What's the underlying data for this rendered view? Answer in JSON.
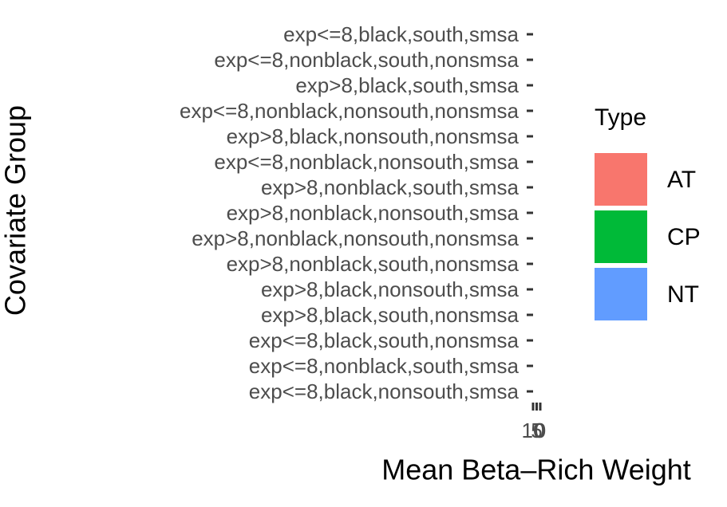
{
  "chart_data": {
    "type": "bar",
    "orientation": "horizontal",
    "xlabel": "Mean Beta–Rich Weight",
    "ylabel": "Covariate Group",
    "categories": [
      "exp<=8,black,south,smsa",
      "exp<=8,nonblack,south,nonsmsa",
      "exp>8,black,south,smsa",
      "exp<=8,nonblack,nonsouth,nonsmsa",
      "exp>8,black,nonsouth,nonsmsa",
      "exp<=8,nonblack,nonsouth,smsa",
      "exp>8,nonblack,south,smsa",
      "exp>8,nonblack,nonsouth,smsa",
      "exp>8,nonblack,nonsouth,nonsmsa",
      "exp>8,nonblack,south,nonsmsa",
      "exp>8,black,nonsouth,smsa",
      "exp>8,black,south,nonsmsa",
      "exp<=8,black,south,nonsmsa",
      "exp<=8,nonblack,south,smsa",
      "exp<=8,black,nonsouth,smsa"
    ],
    "xlim": [
      0,
      10
    ],
    "xticks": [
      0,
      5,
      10
    ],
    "legend": {
      "title": "Type",
      "items": [
        {
          "name": "AT",
          "color": "#f8766d"
        },
        {
          "name": "CP",
          "color": "#00ba38"
        },
        {
          "name": "NT",
          "color": "#619cff"
        }
      ]
    }
  }
}
